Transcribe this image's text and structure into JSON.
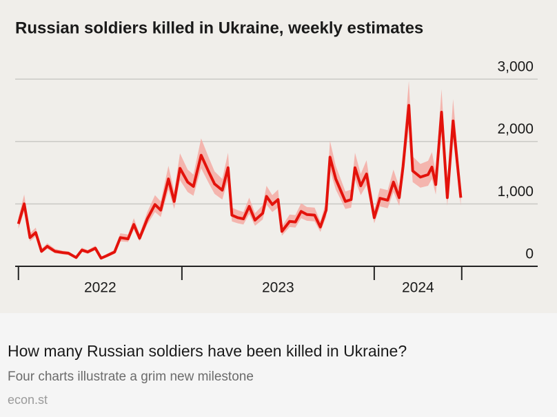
{
  "chart_data": {
    "type": "line",
    "title": "Russian soldiers killed in Ukraine, weekly estimates",
    "color": "#e3120b",
    "band_color": "#f5aaa3",
    "x": [
      2022.15,
      2022.18,
      2022.21,
      2022.24,
      2022.27,
      2022.3,
      2022.34,
      2022.38,
      2022.41,
      2022.45,
      2022.48,
      2022.51,
      2022.55,
      2022.58,
      2022.61,
      2022.65,
      2022.68,
      2022.72,
      2022.75,
      2022.78,
      2022.82,
      2022.86,
      2022.89,
      2022.93,
      2022.96,
      2022.99,
      2023.03,
      2023.06,
      2023.1,
      2023.14,
      2023.17,
      2023.21,
      2023.24,
      2023.26,
      2023.29,
      2023.32,
      2023.35,
      2023.38,
      2023.42,
      2023.44,
      2023.47,
      2023.5,
      2023.52,
      2023.56,
      2023.59,
      2023.62,
      2023.65,
      2023.69,
      2023.72,
      2023.75,
      2023.77,
      2023.8,
      2023.85,
      2023.88,
      2023.9,
      2023.93,
      2023.96,
      2024.0,
      2024.03,
      2024.07,
      2024.1,
      2024.13,
      2024.15,
      2024.18,
      2024.2,
      2024.24,
      2024.28,
      2024.3,
      2024.32,
      2024.35,
      2024.38,
      2024.41,
      2024.45
    ],
    "values": [
      680,
      1000,
      460,
      540,
      240,
      320,
      240,
      220,
      210,
      140,
      260,
      230,
      290,
      130,
      170,
      230,
      460,
      440,
      670,
      450,
      760,
      990,
      900,
      1400,
      1040,
      1570,
      1350,
      1280,
      1780,
      1510,
      1320,
      1220,
      1580,
      820,
      780,
      760,
      960,
      740,
      850,
      1120,
      990,
      1070,
      560,
      720,
      710,
      880,
      830,
      820,
      630,
      900,
      1750,
      1400,
      1040,
      1070,
      1580,
      1290,
      1480,
      780,
      1090,
      1060,
      1350,
      1100,
      1600,
      2580,
      1530,
      1430,
      1470,
      1590,
      1310,
      2470,
      1100,
      2330,
      1100
    ],
    "upper": [
      780,
      1150,
      530,
      620,
      280,
      370,
      280,
      250,
      240,
      160,
      300,
      260,
      330,
      150,
      200,
      260,
      530,
      510,
      770,
      520,
      870,
      1140,
      1040,
      1610,
      1200,
      1810,
      1550,
      1470,
      2050,
      1740,
      1520,
      1400,
      1820,
      940,
      900,
      870,
      1100,
      850,
      980,
      1290,
      1140,
      1230,
      640,
      830,
      820,
      1010,
      950,
      940,
      720,
      1040,
      2010,
      1610,
      1200,
      1230,
      1820,
      1480,
      1700,
      900,
      1250,
      1220,
      1550,
      1270,
      1840,
      2970,
      1760,
      1640,
      1690,
      1830,
      1510,
      2840,
      1270,
      2680,
      1270
    ],
    "lower": [
      600,
      880,
      400,
      480,
      210,
      280,
      210,
      190,
      180,
      120,
      230,
      200,
      260,
      110,
      150,
      200,
      400,
      390,
      590,
      400,
      670,
      870,
      790,
      1230,
      920,
      1380,
      1190,
      1130,
      1570,
      1330,
      1160,
      1070,
      1390,
      720,
      690,
      670,
      840,
      650,
      750,
      990,
      870,
      940,
      490,
      630,
      620,
      770,
      730,
      720,
      550,
      790,
      1540,
      1230,
      920,
      940,
      1390,
      1140,
      1300,
      690,
      960,
      930,
      1190,
      970,
      1410,
      2270,
      1350,
      1260,
      1290,
      1400,
      1150,
      2170,
      970,
      2050,
      970
    ],
    "xlim": [
      2022.133,
      2024.85
    ],
    "xticks": [
      2022.15,
      2023,
      2024,
      2024.455
    ],
    "x_labels": [
      "2022",
      "2023",
      "2024"
    ],
    "ylim": [
      0,
      3000
    ],
    "yticks": [
      0,
      {
        "value": 1000,
        "label": "1,000"
      },
      {
        "value": 2000,
        "label": "2,000"
      },
      {
        "value": 3000,
        "label": "3,000"
      }
    ],
    "grid": true
  },
  "card": {
    "headline": "How many Russian soldiers have been killed in Ukraine?",
    "description": "Four charts illustrate a grim new milestone",
    "domain": "econ.st"
  }
}
